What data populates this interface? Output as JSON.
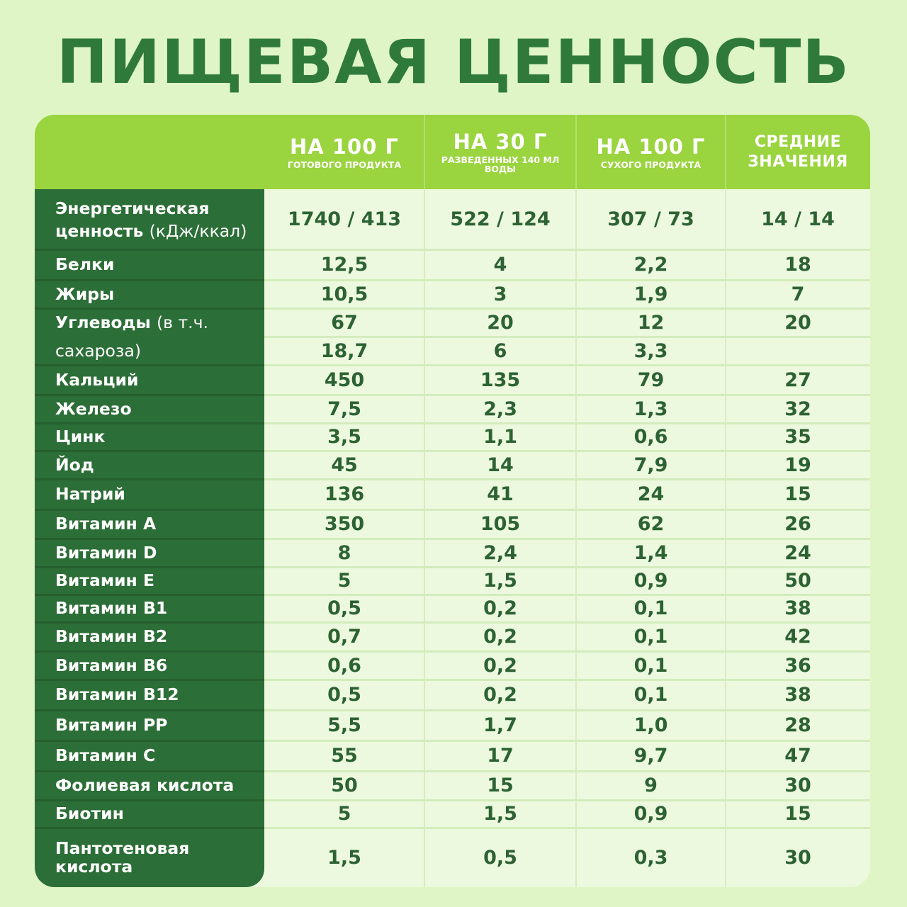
{
  "title": "ПИЩЕВАЯ ЦЕННОСТЬ",
  "columns": [
    {
      "main": "НА 100 Г",
      "sub": "ГОТОВОГО ПРОДУКТА"
    },
    {
      "main": "НА 30 Г",
      "sub": "РАЗВЕДЕННЫХ 140 МЛ ВОДЫ"
    },
    {
      "main": "НА 100 Г",
      "sub": "СУХОГО ПРОДУКТА"
    },
    {
      "line1": "СРЕДНИЕ",
      "line2": "ЗНАЧЕНИЯ"
    }
  ],
  "rows": [
    {
      "label_bold": "Энергетическая ценность",
      "label_light": "(кДж/ккал)",
      "values": [
        "1740 / 413",
        "522 / 124",
        "307 / 73",
        "14 / 14"
      ]
    },
    {
      "label_bold": "Белки",
      "values": [
        "12,5",
        "4",
        "2,2",
        "18"
      ]
    },
    {
      "label_bold": "Жиры",
      "values": [
        "10,5",
        "3",
        "1,9",
        "7"
      ]
    },
    {
      "label_bold": "Углеводы",
      "label_light": "(в т.ч.",
      "values": [
        "67",
        "20",
        "12",
        "20"
      ]
    },
    {
      "label_bold": "",
      "label_light": "сахароза)",
      "values": [
        "18,7",
        "6",
        "3,3",
        ""
      ]
    },
    {
      "label_bold": "Кальций",
      "values": [
        "450",
        "135",
        "79",
        "27"
      ]
    },
    {
      "label_bold": "Железо",
      "values": [
        "7,5",
        "2,3",
        "1,3",
        "32"
      ]
    },
    {
      "label_bold": "Цинк",
      "values": [
        "3,5",
        "1,1",
        "0,6",
        "35"
      ]
    },
    {
      "label_bold": "Йод",
      "values": [
        "45",
        "14",
        "7,9",
        "19"
      ]
    },
    {
      "label_bold": "Натрий",
      "values": [
        "136",
        "41",
        "24",
        "15"
      ]
    },
    {
      "label_bold": "Витамин А",
      "values": [
        "350",
        "105",
        "62",
        "26"
      ]
    },
    {
      "label_bold": "Витамин D",
      "values": [
        "8",
        "2,4",
        "1,4",
        "24"
      ]
    },
    {
      "label_bold": "Витамин Е",
      "values": [
        "5",
        "1,5",
        "0,9",
        "50"
      ]
    },
    {
      "label_bold": "Витамин B1",
      "values": [
        "0,5",
        "0,2",
        "0,1",
        "38"
      ]
    },
    {
      "label_bold": "Витамин B2",
      "values": [
        "0,7",
        "0,2",
        "0,1",
        "42"
      ]
    },
    {
      "label_bold": "Витамин B6",
      "values": [
        "0,6",
        "0,2",
        "0,1",
        "36"
      ]
    },
    {
      "label_bold": "Витамин B12",
      "values": [
        "0,5",
        "0,2",
        "0,1",
        "38"
      ]
    },
    {
      "label_bold": "Витамин PP",
      "values": [
        "5,5",
        "1,7",
        "1,0",
        "28"
      ]
    },
    {
      "label_bold": "Витамин С",
      "values": [
        "55",
        "17",
        "9,7",
        "47"
      ]
    },
    {
      "label_bold": "Фолиевая кислота",
      "values": [
        "50",
        "15",
        "9",
        "30"
      ]
    },
    {
      "label_bold": "Биотин",
      "values": [
        "5",
        "1,5",
        "0,9",
        "15"
      ]
    },
    {
      "label_bold": "Пантотеновая кислота",
      "values": [
        "1,5",
        "0,5",
        "0,3",
        "30"
      ]
    }
  ],
  "colors": {
    "background": "#dff5c6",
    "header": "#9ad43e",
    "label_column": "#2c6e37",
    "cell_background": "#ecf9df",
    "value_text": "#2d6233",
    "title_text": "#2f7a3a"
  }
}
